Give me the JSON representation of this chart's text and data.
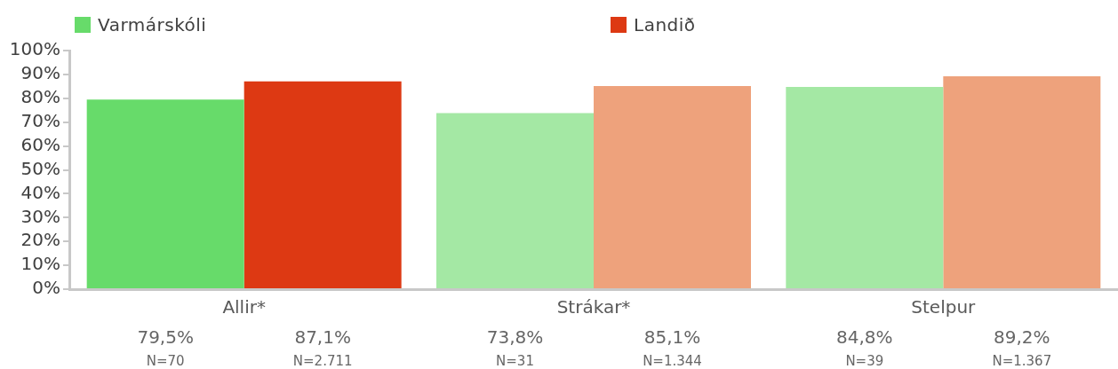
{
  "chart_data": {
    "type": "bar",
    "categories": [
      "Allir*",
      "Strákar*",
      "Stelpur"
    ],
    "series": [
      {
        "name": "Varmárskóli",
        "color": "#67db6a",
        "colors": [
          "#67db6a",
          "#a4e8a4",
          "#a4e8a4"
        ],
        "values": [
          79.5,
          73.8,
          84.8
        ],
        "value_labels": [
          "79,5%",
          "73,8%",
          "84,8%"
        ]
      },
      {
        "name": "Landið",
        "color": "#dd3913",
        "colors": [
          "#dd3913",
          "#eea27c",
          "#eea27c"
        ],
        "values": [
          87.1,
          85.1,
          89.2
        ],
        "value_labels": [
          "87,1%",
          "85,1%",
          "89,2%"
        ]
      }
    ],
    "ylim": [
      0,
      100
    ],
    "yticks": [
      {
        "value": 0,
        "label": "0%"
      },
      {
        "value": 10,
        "label": "10%"
      },
      {
        "value": 20,
        "label": "20%"
      },
      {
        "value": 30,
        "label": "30%"
      },
      {
        "value": 40,
        "label": "40%"
      },
      {
        "value": 50,
        "label": "50%"
      },
      {
        "value": 60,
        "label": "60%"
      },
      {
        "value": 70,
        "label": "70%"
      },
      {
        "value": 80,
        "label": "80%"
      },
      {
        "value": 90,
        "label": "90%"
      },
      {
        "value": 100,
        "label": "100%"
      }
    ],
    "legend": "top",
    "annotations": [
      "N=70",
      "N=2.711",
      "N=31",
      "N=1.344",
      "N=39",
      "N=1.367"
    ]
  }
}
